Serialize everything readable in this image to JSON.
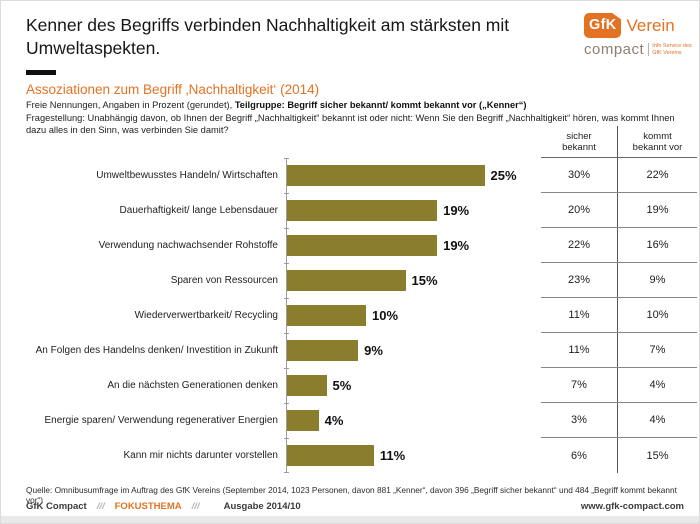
{
  "header": {
    "title": "Kenner des Begriffs verbinden Nachhaltigkeit am stärksten mit Umweltaspekten.",
    "logo": {
      "box": "GfK",
      "name": "Verein",
      "product": "compact",
      "tagline": "Info Service des\nGfK Vereins"
    }
  },
  "intro": {
    "heading": "Assoziationen zum Begriff ‚Nachhaltigkeit‘ (2014)",
    "line1_normal": "Freie Nennungen, Angaben in Prozent (gerundet), ",
    "line1_bold": "Teilgruppe: Begriff sicher bekannt/ kommt bekannt vor („Kenner“)",
    "question": "Fragestellung: Unabhängig davon, ob Ihnen der Begriff „Nachhaltigkeit“ bekannt ist oder nicht: Wenn Sie den Begriff „Nachhaltigkeit“ hören, was kommt Ihnen dazu alles in den Sinn, was verbinden Sie damit?"
  },
  "table": {
    "col1_header": "sicher\nbekannt",
    "col2_header": "kommt\nbekannt vor"
  },
  "chart_data": {
    "type": "bar",
    "orientation": "horizontal",
    "title": "Assoziationen zum Begriff ‚Nachhaltigkeit‘ (2014)",
    "value_suffix": "%",
    "xlim": [
      0,
      27
    ],
    "grid": false,
    "legend_position": "none",
    "bar_color": "#8a7d2b",
    "categories": [
      "Umweltbewusstes Handeln/ Wirtschaften",
      "Dauerhaftigkeit/ lange Lebensdauer",
      "Verwendung nachwachsender Rohstoffe",
      "Sparen von Ressourcen",
      "Wiederverwertbarkeit/ Recycling",
      "An Folgen des Handelns denken/ Investition in Zukunft",
      "An die nächsten Generationen denken",
      "Energie sparen/ Verwendung regenerativer Energien",
      "Kann mir nichts darunter vorstellen"
    ],
    "series": [
      {
        "name": "Kenner (Balken)",
        "values": [
          25,
          19,
          19,
          15,
          10,
          9,
          5,
          4,
          11
        ]
      },
      {
        "name": "sicher bekannt",
        "values": [
          30,
          20,
          22,
          23,
          11,
          11,
          7,
          3,
          6
        ]
      },
      {
        "name": "kommt bekannt vor",
        "values": [
          22,
          19,
          16,
          9,
          10,
          7,
          4,
          4,
          15
        ]
      }
    ]
  },
  "source": "Quelle: Omnibusumfrage im Auftrag des GfK Vereins (September 2014, 1023 Personen, davon 881 „Kenner“, davon 396 „Begriff sicher bekannt“ und 484 „Begriff kommt bekannt vor“)",
  "footer": {
    "brand": "GfK Compact",
    "sep1": "///",
    "focus": "FOKUSTHEMA",
    "sep2": "///",
    "issue": "Ausgabe 2014/10",
    "website": "www.gfk-compact.com"
  },
  "colors": {
    "accent": "#e37222",
    "bar": "#8a7d2b"
  }
}
